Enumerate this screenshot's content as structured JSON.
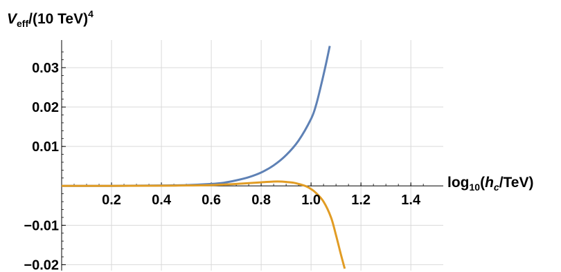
{
  "chart_data": {
    "type": "line",
    "ylabel": {
      "main": "V",
      "sub": "eff",
      "rest": "/(10 TeV)",
      "sup": "4"
    },
    "xlabel": {
      "pre": "log",
      "sub": "10",
      "open": "(",
      "var": "h",
      "varsub": "c",
      "rest": "/TeV)"
    },
    "xlim": [
      0,
      1.53
    ],
    "ylim": [
      -0.0215,
      0.037
    ],
    "x_ticks": [
      0.2,
      0.4,
      0.6,
      0.8,
      1.0,
      1.2,
      1.4
    ],
    "x_tick_labels": [
      "0.2",
      "0.4",
      "0.6",
      "0.8",
      "1.0",
      "1.2",
      "1.4"
    ],
    "y_ticks": [
      -0.02,
      -0.01,
      0.01,
      0.02,
      0.03
    ],
    "y_tick_labels": [
      "−0.02",
      "−0.01",
      "0.01",
      "0.02",
      "0.03"
    ],
    "grid": true,
    "colors": {
      "series1": "#5e81b5",
      "series2": "#e19c24",
      "grid": "#d9d9d9",
      "axis": "#000000"
    },
    "series": [
      {
        "x": [
          0.0,
          0.2,
          0.4,
          0.5,
          0.6,
          0.65,
          0.7,
          0.75,
          0.8,
          0.85,
          0.9,
          0.95,
          1.0,
          1.02,
          1.04,
          1.06,
          1.075
        ],
        "y": [
          0.0,
          1e-05,
          0.0001,
          0.0002,
          0.0005,
          0.0008,
          0.0014,
          0.0022,
          0.0034,
          0.0052,
          0.0078,
          0.0115,
          0.017,
          0.0205,
          0.0255,
          0.031,
          0.0355
        ]
      },
      {
        "x": [
          0.0,
          0.2,
          0.4,
          0.5,
          0.6,
          0.7,
          0.8,
          0.85,
          0.88,
          0.9,
          0.93,
          0.95,
          0.98,
          1.0,
          1.02,
          1.05,
          1.08,
          1.1,
          1.12,
          1.135
        ],
        "y": [
          0.0,
          0.0,
          5e-05,
          0.0001,
          0.0002,
          0.0005,
          0.0009,
          0.0011,
          0.0011,
          0.001,
          0.0008,
          0.0005,
          -0.0001,
          -0.0008,
          -0.0018,
          -0.004,
          -0.008,
          -0.0125,
          -0.0175,
          -0.021
        ]
      }
    ]
  }
}
